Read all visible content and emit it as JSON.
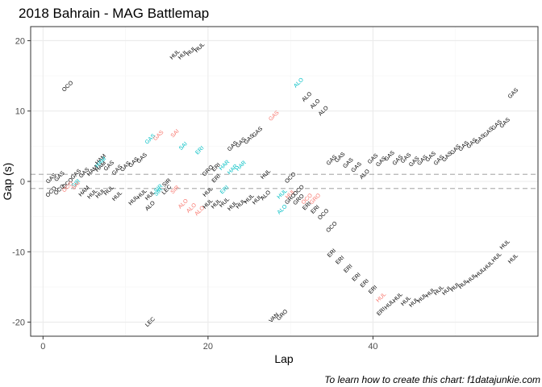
{
  "chart_data": {
    "type": "scatter",
    "title": "2018 Bahrain - MAG Battlemap",
    "xlabel": "Lap",
    "ylabel": "Gap (s)",
    "caption": "To learn how to create this chart: f1datajunkie.com",
    "xlim": [
      -1.5,
      60.0
    ],
    "ylim": [
      -22,
      22
    ],
    "x_ticks": [
      0,
      20,
      40
    ],
    "y_ticks": [
      -20,
      -10,
      0,
      10,
      20
    ],
    "grid": true,
    "reference_lines": [
      1,
      -1
    ],
    "colors": {
      "behind": "#000000",
      "lapping": "#f8766d",
      "lapped": "#00bfc4",
      "ref_line": "#b3b3b3",
      "panel_border": "#333333",
      "grid_major": "#ebebeb",
      "grid_minor": "#f5f5f5"
    },
    "points": [
      {
        "x": 1,
        "y": 0.4,
        "label": "GAS",
        "group": "behind"
      },
      {
        "x": 1,
        "y": -1.5,
        "label": "OCO",
        "group": "behind"
      },
      {
        "x": 2,
        "y": 0.7,
        "label": "GAS",
        "group": "behind"
      },
      {
        "x": 2,
        "y": -1.2,
        "label": "OCO",
        "group": "behind"
      },
      {
        "x": 3,
        "y": 13.5,
        "label": "OCO",
        "group": "behind"
      },
      {
        "x": 3,
        "y": -0.3,
        "label": "OCO",
        "group": "behind"
      },
      {
        "x": 3,
        "y": -0.8,
        "label": "OCO",
        "group": "lapping"
      },
      {
        "x": 4,
        "y": 1.0,
        "label": "GAS",
        "group": "behind"
      },
      {
        "x": 4,
        "y": -0.3,
        "label": "SIR",
        "group": "lapped"
      },
      {
        "x": 4,
        "y": -0.6,
        "label": "SAI",
        "group": "lapping"
      },
      {
        "x": 5,
        "y": 1.2,
        "label": "GAS",
        "group": "behind"
      },
      {
        "x": 5,
        "y": -1.4,
        "label": "HAM",
        "group": "behind"
      },
      {
        "x": 6,
        "y": 1.5,
        "label": "HAM",
        "group": "behind"
      },
      {
        "x": 6,
        "y": -1.8,
        "label": "HUL",
        "group": "behind"
      },
      {
        "x": 7,
        "y": 2.1,
        "label": "HAM",
        "group": "behind"
      },
      {
        "x": 7,
        "y": 3.1,
        "label": "HAM",
        "group": "behind"
      },
      {
        "x": 7,
        "y": 2.7,
        "label": "HAM",
        "group": "lapped"
      },
      {
        "x": 7,
        "y": -1.7,
        "label": "HUL",
        "group": "behind"
      },
      {
        "x": 8,
        "y": 2.2,
        "label": "GAS",
        "group": "behind"
      },
      {
        "x": 8,
        "y": -1.3,
        "label": "HUL",
        "group": "behind"
      },
      {
        "x": 9,
        "y": 1.6,
        "label": "GAS",
        "group": "behind"
      },
      {
        "x": 9,
        "y": -2.1,
        "label": "HUL",
        "group": "behind"
      },
      {
        "x": 10,
        "y": 2.1,
        "label": "GAS",
        "group": "behind"
      },
      {
        "x": 11,
        "y": 2.7,
        "label": "GAS",
        "group": "behind"
      },
      {
        "x": 11,
        "y": -2.7,
        "label": "HUL",
        "group": "behind"
      },
      {
        "x": 12,
        "y": 3.3,
        "label": "GAS",
        "group": "behind"
      },
      {
        "x": 12,
        "y": -1.8,
        "label": "HUL",
        "group": "behind"
      },
      {
        "x": 13,
        "y": 6.0,
        "label": "GAS",
        "group": "lapped"
      },
      {
        "x": 13,
        "y": -2.0,
        "label": "HUL",
        "group": "behind"
      },
      {
        "x": 13,
        "y": -3.5,
        "label": "ALO",
        "group": "behind"
      },
      {
        "x": 13,
        "y": -20.0,
        "label": "LEC",
        "group": "behind"
      },
      {
        "x": 14,
        "y": 6.5,
        "label": "GAS",
        "group": "lapping"
      },
      {
        "x": 14,
        "y": -1.0,
        "label": "SIR",
        "group": "lapped"
      },
      {
        "x": 14,
        "y": -1.5,
        "label": "SIR",
        "group": "lapped"
      },
      {
        "x": 15,
        "y": -1.2,
        "label": "LEC",
        "group": "behind"
      },
      {
        "x": 15,
        "y": -0.2,
        "label": "SIR",
        "group": "behind"
      },
      {
        "x": 16,
        "y": 6.8,
        "label": "SAI",
        "group": "lapping"
      },
      {
        "x": 16,
        "y": -1.2,
        "label": "SIR",
        "group": "lapping"
      },
      {
        "x": 16,
        "y": 18.0,
        "label": "HUL",
        "group": "behind"
      },
      {
        "x": 17,
        "y": 5.0,
        "label": "SAI",
        "group": "lapped"
      },
      {
        "x": 17,
        "y": -3.2,
        "label": "ALO",
        "group": "lapping"
      },
      {
        "x": 17,
        "y": 18.0,
        "label": "HUL",
        "group": "behind"
      },
      {
        "x": 18,
        "y": -3.8,
        "label": "ALO",
        "group": "lapping"
      },
      {
        "x": 18,
        "y": 18.5,
        "label": "HUL",
        "group": "behind"
      },
      {
        "x": 19,
        "y": 4.4,
        "label": "ERI",
        "group": "lapped"
      },
      {
        "x": 19,
        "y": -4.2,
        "label": "ALO",
        "group": "lapping"
      },
      {
        "x": 19,
        "y": 19.0,
        "label": "HUL",
        "group": "behind"
      },
      {
        "x": 20,
        "y": 1.5,
        "label": "GRO",
        "group": "behind"
      },
      {
        "x": 20,
        "y": -1.5,
        "label": "HUL",
        "group": "behind"
      },
      {
        "x": 20,
        "y": -3.2,
        "label": "HUL",
        "group": "behind"
      },
      {
        "x": 21,
        "y": 2.0,
        "label": "ERI",
        "group": "behind"
      },
      {
        "x": 21,
        "y": 0.4,
        "label": "ERI",
        "group": "behind"
      },
      {
        "x": 21,
        "y": -3.2,
        "label": "HUL",
        "group": "behind"
      },
      {
        "x": 22,
        "y": 2.3,
        "label": "HAR",
        "group": "lapped"
      },
      {
        "x": 22,
        "y": -1.2,
        "label": "ERI",
        "group": "lapped"
      },
      {
        "x": 22,
        "y": -3.0,
        "label": "HUL",
        "group": "behind"
      },
      {
        "x": 23,
        "y": 5.0,
        "label": "GAS",
        "group": "behind"
      },
      {
        "x": 23,
        "y": 1.7,
        "label": "HAR",
        "group": "lapped"
      },
      {
        "x": 23,
        "y": -3.5,
        "label": "HUL",
        "group": "behind"
      },
      {
        "x": 24,
        "y": 5.5,
        "label": "GAS",
        "group": "behind"
      },
      {
        "x": 24,
        "y": 2.2,
        "label": "HAR",
        "group": "lapped"
      },
      {
        "x": 24,
        "y": -3.2,
        "label": "HUL",
        "group": "behind"
      },
      {
        "x": 25,
        "y": 6.0,
        "label": "GAS",
        "group": "behind"
      },
      {
        "x": 25,
        "y": -2.5,
        "label": "HUL",
        "group": "behind"
      },
      {
        "x": 26,
        "y": 7.0,
        "label": "GAS",
        "group": "behind"
      },
      {
        "x": 26,
        "y": -2.6,
        "label": "HUL",
        "group": "behind"
      },
      {
        "x": 27,
        "y": 1.0,
        "label": "HUL",
        "group": "behind"
      },
      {
        "x": 27,
        "y": -2.0,
        "label": "ALO",
        "group": "behind"
      },
      {
        "x": 28,
        "y": 9.3,
        "label": "GAS",
        "group": "lapping"
      },
      {
        "x": 28,
        "y": -19.4,
        "label": "VAN",
        "group": "behind"
      },
      {
        "x": 29,
        "y": -19.0,
        "label": "GRO",
        "group": "behind"
      },
      {
        "x": 29,
        "y": -1.8,
        "label": "HUL",
        "group": "lapped"
      },
      {
        "x": 29,
        "y": -4.0,
        "label": "ALO",
        "group": "lapped"
      },
      {
        "x": 30,
        "y": 0.5,
        "label": "OCO",
        "group": "behind"
      },
      {
        "x": 30,
        "y": -1.8,
        "label": "HUL",
        "group": "lapping"
      },
      {
        "x": 30,
        "y": -2.5,
        "label": "GRO",
        "group": "behind"
      },
      {
        "x": 31,
        "y": 14.0,
        "label": "ALO",
        "group": "lapped"
      },
      {
        "x": 31,
        "y": -1.3,
        "label": "OCO",
        "group": "behind"
      },
      {
        "x": 31,
        "y": -2.6,
        "label": "GRO",
        "group": "behind"
      },
      {
        "x": 32,
        "y": 12.0,
        "label": "ALO",
        "group": "behind"
      },
      {
        "x": 32,
        "y": -2.5,
        "label": "OCO",
        "group": "lapping"
      },
      {
        "x": 32,
        "y": -3.5,
        "label": "ERI",
        "group": "behind"
      },
      {
        "x": 33,
        "y": 11.0,
        "label": "ALO",
        "group": "behind"
      },
      {
        "x": 33,
        "y": -2.5,
        "label": "GRO",
        "group": "lapping"
      },
      {
        "x": 33,
        "y": -4.0,
        "label": "ERI",
        "group": "behind"
      },
      {
        "x": 34,
        "y": 10.0,
        "label": "ALO",
        "group": "behind"
      },
      {
        "x": 34,
        "y": -4.7,
        "label": "OCO",
        "group": "behind"
      },
      {
        "x": 35,
        "y": -6.5,
        "label": "OCO",
        "group": "behind"
      },
      {
        "x": 35,
        "y": -10.2,
        "label": "ERI",
        "group": "behind"
      },
      {
        "x": 35,
        "y": 3.0,
        "label": "GAS",
        "group": "behind"
      },
      {
        "x": 36,
        "y": 3.4,
        "label": "GAS",
        "group": "behind"
      },
      {
        "x": 36,
        "y": -11.2,
        "label": "ERI",
        "group": "behind"
      },
      {
        "x": 37,
        "y": 2.6,
        "label": "GAS",
        "group": "behind"
      },
      {
        "x": 37,
        "y": -12.4,
        "label": "ERI",
        "group": "behind"
      },
      {
        "x": 38,
        "y": 2.0,
        "label": "GAS",
        "group": "behind"
      },
      {
        "x": 38,
        "y": -13.6,
        "label": "ERI",
        "group": "behind"
      },
      {
        "x": 39,
        "y": 1.0,
        "label": "ALO",
        "group": "behind"
      },
      {
        "x": 39,
        "y": -14.5,
        "label": "ERI",
        "group": "behind"
      },
      {
        "x": 40,
        "y": 3.2,
        "label": "GAS",
        "group": "behind"
      },
      {
        "x": 40,
        "y": -15.4,
        "label": "ERI",
        "group": "behind"
      },
      {
        "x": 41,
        "y": 2.8,
        "label": "GAS",
        "group": "behind"
      },
      {
        "x": 41,
        "y": -16.5,
        "label": "HUL",
        "group": "lapping"
      },
      {
        "x": 41,
        "y": -18.5,
        "label": "ERI",
        "group": "behind"
      },
      {
        "x": 42,
        "y": 3.6,
        "label": "GAS",
        "group": "behind"
      },
      {
        "x": 42,
        "y": -17.5,
        "label": "HUL",
        "group": "behind"
      },
      {
        "x": 43,
        "y": 3.0,
        "label": "GAS",
        "group": "behind"
      },
      {
        "x": 43,
        "y": -16.5,
        "label": "HUL",
        "group": "behind"
      },
      {
        "x": 44,
        "y": 3.3,
        "label": "GAS",
        "group": "behind"
      },
      {
        "x": 44,
        "y": -17.0,
        "label": "HUL",
        "group": "behind"
      },
      {
        "x": 45,
        "y": 2.8,
        "label": "GAS",
        "group": "behind"
      },
      {
        "x": 45,
        "y": -17.2,
        "label": "HUL",
        "group": "behind"
      },
      {
        "x": 46,
        "y": 3.0,
        "label": "GAS",
        "group": "behind"
      },
      {
        "x": 46,
        "y": -16.6,
        "label": "HUL",
        "group": "behind"
      },
      {
        "x": 47,
        "y": 3.5,
        "label": "GAS",
        "group": "behind"
      },
      {
        "x": 47,
        "y": -15.8,
        "label": "HUL",
        "group": "behind"
      },
      {
        "x": 48,
        "y": 3.0,
        "label": "GAS",
        "group": "behind"
      },
      {
        "x": 48,
        "y": -15.5,
        "label": "HUL",
        "group": "behind"
      },
      {
        "x": 49,
        "y": 3.5,
        "label": "GAS",
        "group": "behind"
      },
      {
        "x": 49,
        "y": -15.5,
        "label": "HUL",
        "group": "behind"
      },
      {
        "x": 50,
        "y": 4.5,
        "label": "GAS",
        "group": "behind"
      },
      {
        "x": 50,
        "y": -15.0,
        "label": "HUL",
        "group": "behind"
      },
      {
        "x": 51,
        "y": 5.0,
        "label": "GAS",
        "group": "behind"
      },
      {
        "x": 51,
        "y": -14.6,
        "label": "HUL",
        "group": "behind"
      },
      {
        "x": 52,
        "y": 5.4,
        "label": "GAS",
        "group": "behind"
      },
      {
        "x": 52,
        "y": -13.8,
        "label": "HUL",
        "group": "behind"
      },
      {
        "x": 53,
        "y": 6.0,
        "label": "GAS",
        "group": "behind"
      },
      {
        "x": 53,
        "y": -13.0,
        "label": "HUL",
        "group": "behind"
      },
      {
        "x": 54,
        "y": 7.0,
        "label": "GAS",
        "group": "behind"
      },
      {
        "x": 54,
        "y": -12.0,
        "label": "HUL",
        "group": "behind"
      },
      {
        "x": 55,
        "y": 8.0,
        "label": "GAS",
        "group": "behind"
      },
      {
        "x": 55,
        "y": -10.8,
        "label": "HUL",
        "group": "behind"
      },
      {
        "x": 56,
        "y": 8.3,
        "label": "GAS",
        "group": "behind"
      },
      {
        "x": 56,
        "y": -9.0,
        "label": "HUL",
        "group": "behind"
      },
      {
        "x": 57,
        "y": 12.5,
        "label": "GAS",
        "group": "behind"
      },
      {
        "x": 57,
        "y": -11.0,
        "label": "HUL",
        "group": "behind"
      }
    ]
  }
}
